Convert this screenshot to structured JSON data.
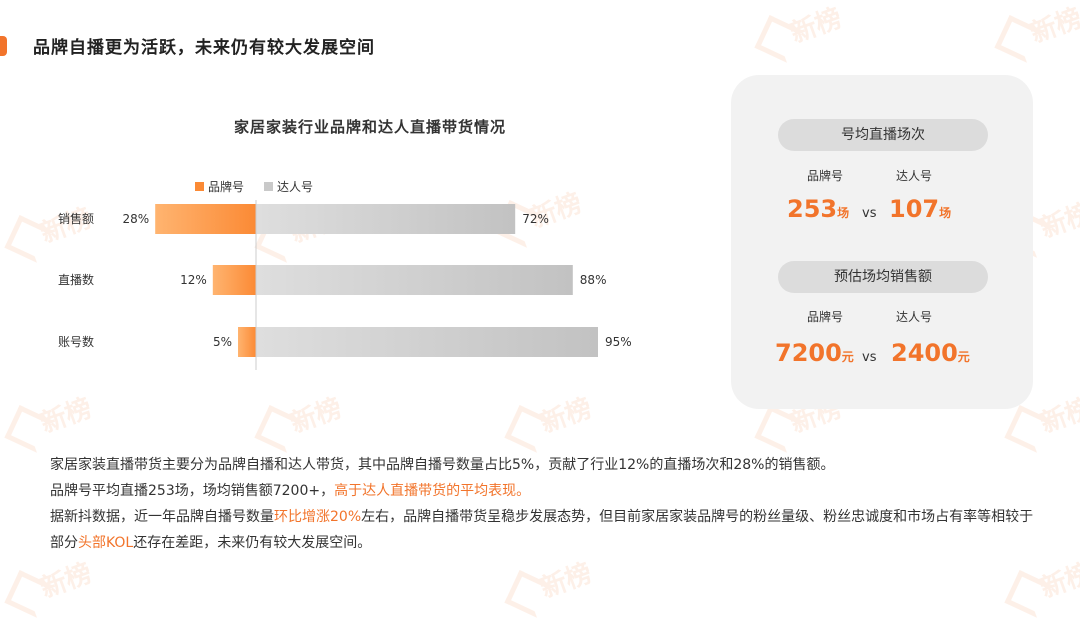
{
  "page": {
    "title": "品牌自播更为活跃，未来仍有较大发展空间",
    "watermark_text": "新榜"
  },
  "colors": {
    "accent": "#f2742b",
    "brand_bar": "#fb9240",
    "influencer_bar": "#c9c9c9",
    "card_bg": "#f2f2f2"
  },
  "chart_data": {
    "type": "bar",
    "orientation": "horizontal-diverging",
    "title": "家居家装行业品牌和达人直播带货情况",
    "categories": [
      "销售额",
      "直播数",
      "账号数"
    ],
    "series": [
      {
        "name": "品牌号",
        "values": [
          28,
          12,
          5
        ],
        "labels": [
          "28%",
          "12%",
          "5%"
        ]
      },
      {
        "name": "达人号",
        "values": [
          72,
          88,
          95
        ],
        "labels": [
          "72%",
          "88%",
          "95%"
        ]
      }
    ],
    "xlim": [
      0,
      100
    ],
    "legend_position": "top-left",
    "grid": false
  },
  "card": {
    "section1": {
      "label": "号均直播场次",
      "brand_label": "品牌号",
      "influencer_label": "达人号",
      "brand_value": "253",
      "brand_unit": "场",
      "vs": "vs",
      "influencer_value": "107",
      "influencer_unit": "场"
    },
    "section2": {
      "label": "预估场均销售额",
      "brand_label": "品牌号",
      "influencer_label": "达人号",
      "brand_value": "7200",
      "brand_unit": "元",
      "vs": "vs",
      "influencer_value": "2400",
      "influencer_unit": "元"
    }
  },
  "description": {
    "p1": "家居家装直播带货主要分为品牌自播和达人带货，其中品牌自播号数量占比5%，贡献了行业12%的直播场次和28%的销售额。",
    "p2_a": "品牌号平均直播253场，场均销售额7200+，",
    "p2_hl": "高于达人直播带货的平均表现。",
    "p3_a": "据新抖数据，近一年品牌自播号数量",
    "p3_hl1": "环比增涨20%",
    "p3_b": "左右，品牌自播带货呈稳步发展态势，但目前家居家装品牌号的粉丝量级、粉丝忠诚度和市场占有率等相较于部分",
    "p3_hl2": "头部KOL",
    "p3_c": "还存在差距，未来仍有较大发展空间。"
  }
}
